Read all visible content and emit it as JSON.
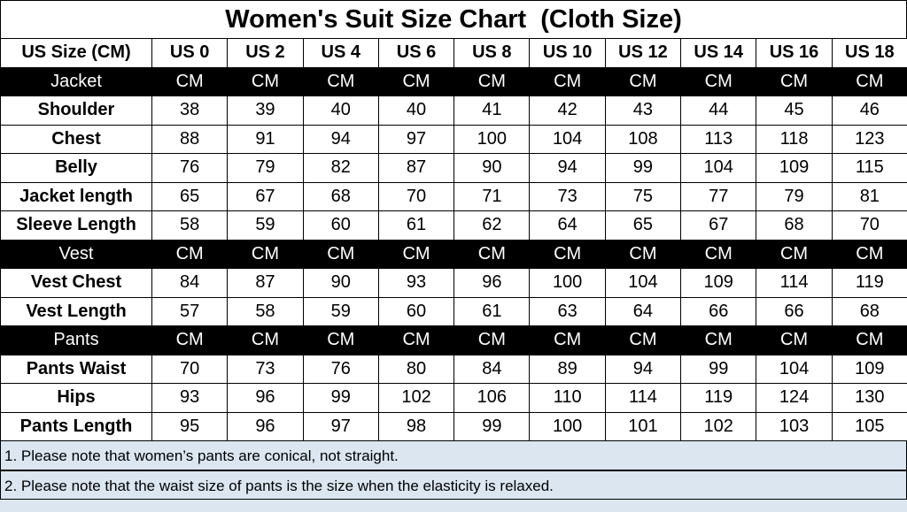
{
  "title": "Women's Suit Size Chart  (Cloth Size)",
  "header": {
    "label": "US Size (CM)",
    "sizes": [
      "US 0",
      "US 2",
      "US 4",
      "US 6",
      "US 8",
      "US 10",
      "US 12",
      "US 14",
      "US 16",
      "US 18"
    ]
  },
  "sections": [
    {
      "name": "Jacket",
      "unit": "CM",
      "rows": [
        {
          "label": "Shoulder",
          "values": [
            "38",
            "39",
            "40",
            "40",
            "41",
            "42",
            "43",
            "44",
            "45",
            "46"
          ]
        },
        {
          "label": "Chest",
          "values": [
            "88",
            "91",
            "94",
            "97",
            "100",
            "104",
            "108",
            "113",
            "118",
            "123"
          ]
        },
        {
          "label": "Belly",
          "values": [
            "76",
            "79",
            "82",
            "87",
            "90",
            "94",
            "99",
            "104",
            "109",
            "115"
          ]
        },
        {
          "label": "Jacket length",
          "values": [
            "65",
            "67",
            "68",
            "70",
            "71",
            "73",
            "75",
            "77",
            "79",
            "81"
          ]
        },
        {
          "label": "Sleeve Length",
          "values": [
            "58",
            "59",
            "60",
            "61",
            "62",
            "64",
            "65",
            "67",
            "68",
            "70"
          ]
        }
      ]
    },
    {
      "name": "Vest",
      "unit": "CM",
      "rows": [
        {
          "label": "Vest Chest",
          "values": [
            "84",
            "87",
            "90",
            "93",
            "96",
            "100",
            "104",
            "109",
            "114",
            "119"
          ]
        },
        {
          "label": "Vest Length",
          "values": [
            "57",
            "58",
            "59",
            "60",
            "61",
            "63",
            "64",
            "66",
            "66",
            "68"
          ]
        }
      ]
    },
    {
      "name": "Pants",
      "unit": "CM",
      "rows": [
        {
          "label": "Pants Waist",
          "values": [
            "70",
            "73",
            "76",
            "80",
            "84",
            "89",
            "94",
            "99",
            "104",
            "109"
          ]
        },
        {
          "label": "Hips",
          "values": [
            "93",
            "96",
            "99",
            "102",
            "106",
            "110",
            "114",
            "119",
            "124",
            "130"
          ]
        },
        {
          "label": "Pants Length",
          "values": [
            "95",
            "96",
            "97",
            "98",
            "99",
            "100",
            "101",
            "102",
            "103",
            "105"
          ]
        }
      ]
    }
  ],
  "notes": [
    "1. Please note that women’s pants are conical, not straight.",
    "2. Please note that the waist size of pants is the size when the elasticity is relaxed."
  ],
  "colors": {
    "section_band": "#000000",
    "note_background": "#dbe6f1"
  }
}
